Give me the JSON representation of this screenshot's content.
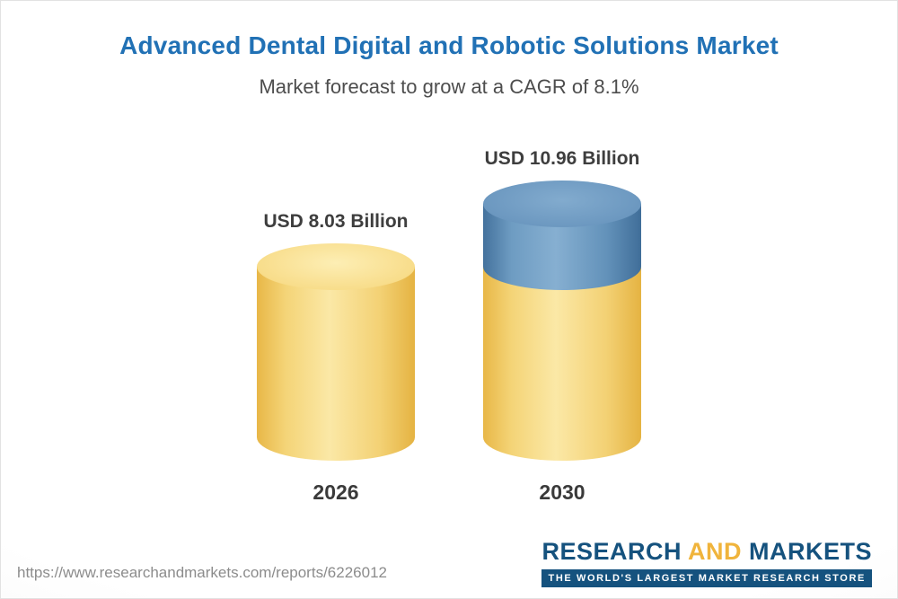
{
  "chart_data": {
    "type": "bar",
    "subtype": "3d-cylinder",
    "title": "Advanced Dental Digital and Robotic Solutions Market",
    "subtitle": "Market forecast to grow at a CAGR of 8.1%",
    "unit": "USD Billion",
    "cagr_percent": 8.1,
    "categories": [
      "2026",
      "2030"
    ],
    "values": [
      8.03,
      10.96
    ],
    "bars": [
      {
        "category": "2026",
        "value": 8.03,
        "value_label": "USD 8.03 Billion",
        "segments": [
          {
            "name": "market-size",
            "value": 8.03,
            "color": "#f6d87f"
          }
        ]
      },
      {
        "category": "2030",
        "value": 10.96,
        "value_label": "USD 10.96 Billion",
        "segments": [
          {
            "name": "base",
            "value": 8.03,
            "color": "#f6d87f"
          },
          {
            "name": "growth",
            "value": 2.93,
            "color": "#6e9cc2"
          }
        ]
      }
    ],
    "legend": false,
    "axes": false
  },
  "colors": {
    "title_blue": "#2171b5",
    "bar_yellow": "#f6d87f",
    "bar_blue": "#6e9cc2",
    "label_gray": "#3e3e3e",
    "logo_blue": "#15527e",
    "logo_yellow": "#f0b43c",
    "url_gray": "#8c8c8c"
  },
  "footer": {
    "url": "https://www.researchandmarkets.com/reports/6226012",
    "logo": {
      "word1": "RESEARCH",
      "word2": "AND",
      "word3": "MARKETS",
      "tagline": "THE WORLD'S LARGEST MARKET RESEARCH STORE"
    }
  }
}
